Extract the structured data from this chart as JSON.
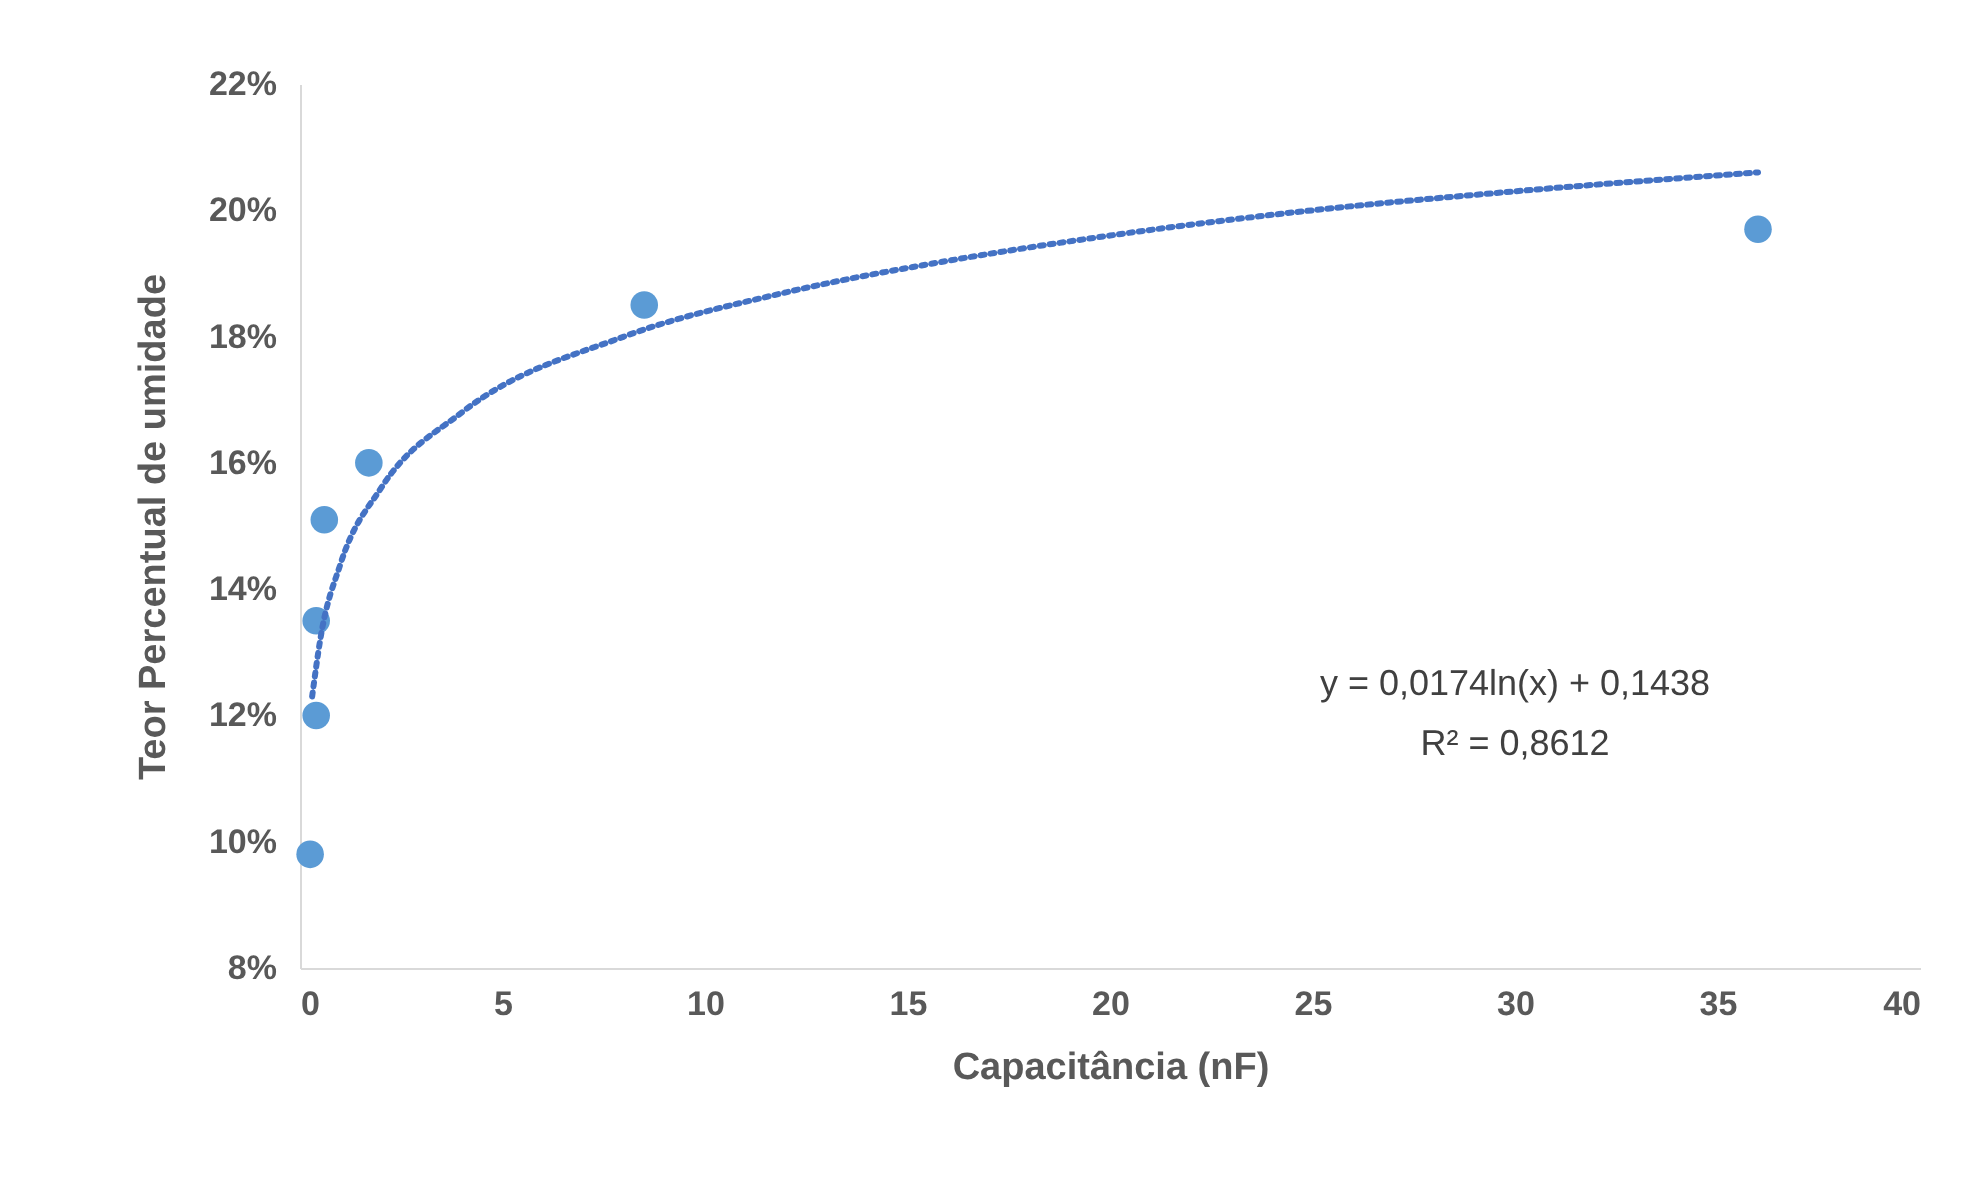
{
  "chart_data": {
    "type": "scatter",
    "xlabel": "Capacitância (nF)",
    "ylabel": "Teor Percentual de umidade",
    "xlim": [
      0,
      40
    ],
    "xticks": [
      0,
      5,
      10,
      15,
      20,
      25,
      30,
      35,
      40
    ],
    "ylim": [
      8,
      22
    ],
    "yticks": [
      {
        "value": 8,
        "label": "8%"
      },
      {
        "value": 10,
        "label": "10%"
      },
      {
        "value": 12,
        "label": "12%"
      },
      {
        "value": 14,
        "label": "14%"
      },
      {
        "value": 16,
        "label": "16%"
      },
      {
        "value": 18,
        "label": "18%"
      },
      {
        "value": 20,
        "label": "20%"
      },
      {
        "value": 22,
        "label": "22%"
      }
    ],
    "grid": false,
    "marker": "circle",
    "annotations": [
      "y = 0,0174ln(x) + 0,1438",
      "R² = 0,8612"
    ],
    "series": [
      {
        "color": "#5b9bd5",
        "x": [
          0.25,
          0.4,
          0.4,
          0.6,
          1.7,
          8.5,
          36
        ],
        "values": [
          9.8,
          12.0,
          13.5,
          15.1,
          16.0,
          18.5,
          19.7
        ]
      },
      {
        "type": "line",
        "color": "#4472c4",
        "line_style": "dotted",
        "marker": "none",
        "x": [
          0.3,
          0.5,
          1,
          2,
          4,
          8,
          12,
          16,
          20,
          25,
          30,
          36
        ],
        "values": [
          12.3,
          13.2,
          14.4,
          15.6,
          16.8,
          18.0,
          18.7,
          19.2,
          19.6,
          20.0,
          20.3,
          20.6
        ]
      }
    ]
  }
}
